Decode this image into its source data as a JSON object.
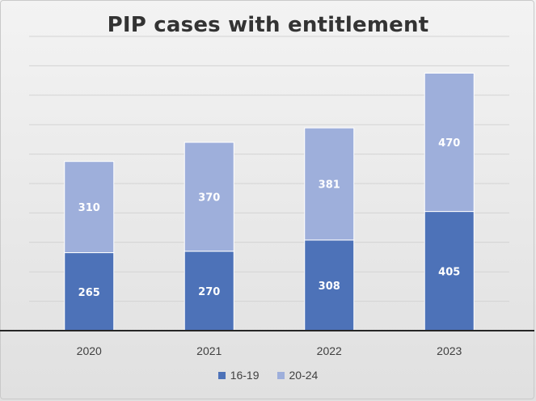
{
  "chart_data": {
    "type": "bar",
    "stacked": true,
    "title": "PIP cases with entitlement",
    "xlabel": "",
    "ylabel": "",
    "categories": [
      "2020",
      "2021",
      "2022",
      "2023"
    ],
    "series": [
      {
        "name": "16-19",
        "color": "#4d72b8",
        "values": [
          265,
          270,
          308,
          405
        ]
      },
      {
        "name": "20-24",
        "color": "#9eafdb",
        "values": [
          310,
          370,
          381,
          470
        ]
      }
    ],
    "ylim": [
      0,
      1000
    ],
    "gridline_step": 100,
    "grid": true,
    "axis_tick_labels_shown": false,
    "data_labels": true,
    "legend": "bottom"
  }
}
